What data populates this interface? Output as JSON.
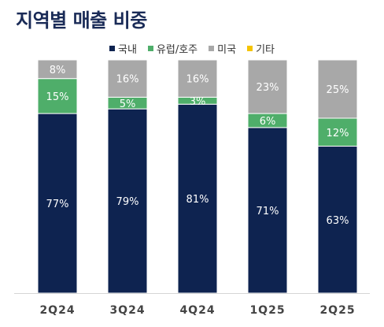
{
  "title": "지역별 매출 비중",
  "chart_data": {
    "type": "bar",
    "stacked": true,
    "percent": true,
    "categories": [
      "2Q24",
      "3Q24",
      "4Q24",
      "1Q25",
      "2Q25"
    ],
    "series": [
      {
        "name": "국내",
        "color": "#0e2350",
        "values": [
          77,
          79,
          81,
          71,
          63
        ],
        "labels": [
          "77%",
          "79%",
          "81%",
          "71%",
          "63%"
        ]
      },
      {
        "name": "유럽/호주",
        "color": "#4fae6a",
        "values": [
          15,
          5,
          3,
          6,
          12
        ],
        "labels": [
          "15%",
          "5%",
          "3%",
          "6%",
          "12%"
        ]
      },
      {
        "name": "미국",
        "color": "#a8a8a8",
        "values": [
          8,
          16,
          16,
          23,
          25
        ],
        "labels": [
          "8%",
          "16%",
          "16%",
          "23%",
          "25%"
        ]
      },
      {
        "name": "기타",
        "color": "#f5c400",
        "values": [
          0,
          0,
          0,
          0,
          0
        ],
        "labels": [
          "",
          "",
          "",
          "",
          ""
        ]
      }
    ],
    "ylim": [
      0,
      100
    ],
    "legend_position": "top",
    "grid": false
  }
}
